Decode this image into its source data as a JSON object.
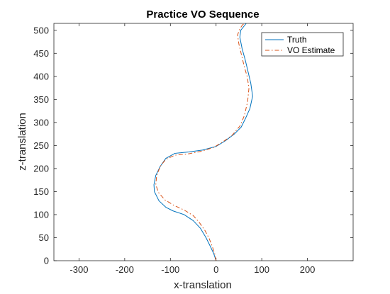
{
  "chart_data": {
    "type": "line",
    "title": "Practice VO Sequence",
    "xlabel": "x-translation",
    "ylabel": "z-translation",
    "xlim": [
      -355,
      300
    ],
    "ylim": [
      0,
      515
    ],
    "xticks": [
      -300,
      -200,
      -100,
      0,
      100,
      200
    ],
    "yticks": [
      0,
      50,
      100,
      150,
      200,
      250,
      300,
      350,
      400,
      450,
      500
    ],
    "grid": false,
    "legend_position": "top-right",
    "series": [
      {
        "name": "Truth",
        "color": "#0072BD",
        "dash": "solid",
        "points": [
          [
            0,
            0
          ],
          [
            -5,
            15
          ],
          [
            -12,
            30
          ],
          [
            -22,
            50
          ],
          [
            -34,
            70
          ],
          [
            -50,
            87
          ],
          [
            -70,
            100
          ],
          [
            -94,
            108
          ],
          [
            -110,
            116
          ],
          [
            -125,
            130
          ],
          [
            -135,
            150
          ],
          [
            -136,
            165
          ],
          [
            -132,
            185
          ],
          [
            -122,
            205
          ],
          [
            -110,
            222
          ],
          [
            -90,
            233
          ],
          [
            -60,
            236
          ],
          [
            -30,
            240
          ],
          [
            0,
            248
          ],
          [
            20,
            260
          ],
          [
            40,
            275
          ],
          [
            55,
            290
          ],
          [
            65,
            310
          ],
          [
            74,
            330
          ],
          [
            80,
            357
          ],
          [
            76,
            385
          ],
          [
            70,
            410
          ],
          [
            64,
            435
          ],
          [
            57,
            460
          ],
          [
            52,
            485
          ],
          [
            54,
            500
          ],
          [
            62,
            510
          ],
          [
            66,
            515
          ]
        ]
      },
      {
        "name": "VO Estimate",
        "color": "#D95319",
        "dash": "dashdot",
        "points": [
          [
            0,
            0
          ],
          [
            -3,
            15
          ],
          [
            -8,
            30
          ],
          [
            -15,
            48
          ],
          [
            -24,
            65
          ],
          [
            -36,
            82
          ],
          [
            -50,
            98
          ],
          [
            -70,
            110
          ],
          [
            -92,
            120
          ],
          [
            -112,
            132
          ],
          [
            -126,
            148
          ],
          [
            -132,
            165
          ],
          [
            -130,
            185
          ],
          [
            -122,
            205
          ],
          [
            -110,
            220
          ],
          [
            -90,
            229
          ],
          [
            -60,
            232
          ],
          [
            -30,
            238
          ],
          [
            -5,
            246
          ],
          [
            15,
            258
          ],
          [
            35,
            272
          ],
          [
            52,
            292
          ],
          [
            62,
            315
          ],
          [
            69,
            345
          ],
          [
            72,
            375
          ],
          [
            68,
            400
          ],
          [
            62,
            420
          ],
          [
            56,
            445
          ],
          [
            50,
            470
          ],
          [
            47,
            490
          ],
          [
            52,
            503
          ],
          [
            58,
            512
          ],
          [
            64,
            515
          ]
        ]
      }
    ]
  }
}
